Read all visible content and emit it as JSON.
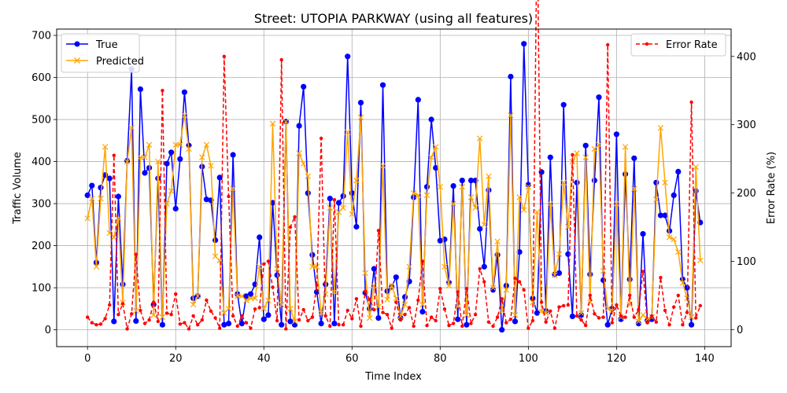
{
  "chart_data": {
    "type": "line",
    "title": "Street: UTOPIA PARKWAY (using all features)",
    "xlabel": "Time Index",
    "ylabel": "Traffic Volume",
    "y2label": "Error Rate (%)",
    "xlim": [
      -7,
      146
    ],
    "ylim": [
      -40,
      715
    ],
    "y2lim": [
      -25,
      440
    ],
    "xticks": [
      0,
      20,
      40,
      60,
      80,
      100,
      120,
      140
    ],
    "yticks": [
      0,
      100,
      200,
      300,
      400,
      500,
      600,
      700
    ],
    "y2ticks": [
      0,
      100,
      200,
      300,
      400
    ],
    "grid": true,
    "legend_left": {
      "placement": "upper-left",
      "entries": [
        "True",
        "Predicted"
      ]
    },
    "legend_right": {
      "placement": "upper-right",
      "entries": [
        "Error Rate"
      ]
    },
    "colors": {
      "true": "#0000ff",
      "predicted": "#ffa500",
      "error": "#ff0000",
      "grid": "#b0b0b0"
    },
    "series": [
      {
        "name": "True",
        "values": [
          320,
          343,
          160,
          338,
          368,
          360,
          20,
          317,
          108,
          402,
          620,
          21,
          572,
          373,
          385,
          60,
          360,
          12,
          395,
          422,
          288,
          406,
          565,
          438,
          75,
          80,
          388,
          310,
          308,
          213,
          362,
          12,
          15,
          416,
          85,
          15,
          80,
          85,
          108,
          220,
          25,
          35,
          302,
          130,
          12,
          495,
          20,
          12,
          485,
          578,
          325,
          178,
          90,
          15,
          108,
          312,
          15,
          302,
          318,
          650,
          325,
          245,
          540,
          88,
          50,
          145,
          28,
          582,
          92,
          102,
          125,
          28,
          78,
          115,
          315,
          547,
          43,
          340,
          500,
          385,
          212,
          215,
          112,
          342,
          25,
          355,
          12,
          355,
          355,
          240,
          150,
          332,
          95,
          178,
          0,
          105,
          602,
          20,
          185,
          680,
          345,
          75,
          40,
          375,
          45,
          410,
          132,
          135,
          535,
          180,
          32,
          350,
          35,
          438,
          132,
          355,
          553,
          118,
          12,
          50,
          465,
          25,
          370,
          120,
          408,
          15,
          228,
          22,
          25,
          350,
          272,
          272,
          235,
          320,
          376,
          120,
          100,
          12,
          330,
          255
        ]
      },
      {
        "name": "Predicted",
        "values": [
          265,
          312,
          150,
          312,
          435,
          230,
          220,
          265,
          65,
          400,
          480,
          45,
          410,
          410,
          440,
          35,
          400,
          30,
          300,
          330,
          440,
          440,
          510,
          430,
          60,
          80,
          410,
          440,
          390,
          175,
          165,
          40,
          50,
          335,
          80,
          80,
          70,
          75,
          75,
          150,
          50,
          70,
          490,
          145,
          60,
          495,
          50,
          20,
          420,
          395,
          365,
          150,
          150,
          40,
          85,
          290,
          90,
          280,
          290,
          470,
          275,
          355,
          505,
          135,
          28,
          105,
          55,
          390,
          72,
          105,
          75,
          32,
          60,
          150,
          325,
          320,
          60,
          320,
          410,
          435,
          340,
          150,
          105,
          300,
          55,
          340,
          35,
          315,
          290,
          455,
          250,
          365,
          100,
          210,
          45,
          95,
          510,
          35,
          315,
          285,
          340,
          65,
          280,
          43,
          40,
          300,
          130,
          180,
          350,
          245,
          400,
          420,
          40,
          410,
          65,
          430,
          440,
          140,
          50,
          45,
          300,
          30,
          435,
          60,
          335,
          20,
          35,
          25,
          30,
          310,
          480,
          350,
          220,
          215,
          185,
          112,
          75,
          30,
          387,
          165
        ]
      },
      {
        "name": "Error Rate",
        "values": [
          18,
          10,
          7,
          8,
          16,
          36,
          255,
          22,
          38,
          1,
          23,
          110,
          28,
          9,
          14,
          40,
          12,
          350,
          24,
          22,
          52,
          8,
          10,
          1,
          20,
          7,
          14,
          43,
          27,
          17,
          2,
          400,
          195,
          20,
          5,
          20,
          10,
          2,
          30,
          32,
          96,
          100,
          62,
          13,
          395,
          1,
          150,
          165,
          14,
          29,
          13,
          18,
          65,
          280,
          20,
          5,
          190,
          7,
          7,
          28,
          16,
          45,
          5,
          56,
          44,
          29,
          145,
          25,
          22,
          2,
          40,
          14,
          22,
          32,
          5,
          43,
          100,
          6,
          18,
          13,
          60,
          30,
          6,
          9,
          55,
          5,
          60,
          9,
          22,
          89,
          70,
          11,
          5,
          18,
          45,
          10,
          15,
          75,
          70,
          58,
          2,
          13,
          600,
          40,
          11,
          27,
          2,
          33,
          35,
          36,
          256,
          20,
          14,
          6,
          50,
          23,
          17,
          18,
          417,
          10,
          36,
          20,
          18,
          50,
          18,
          29,
          85,
          10,
          20,
          11,
          76,
          28,
          7,
          33,
          50,
          7,
          25,
          333,
          17,
          35
        ]
      }
    ]
  }
}
